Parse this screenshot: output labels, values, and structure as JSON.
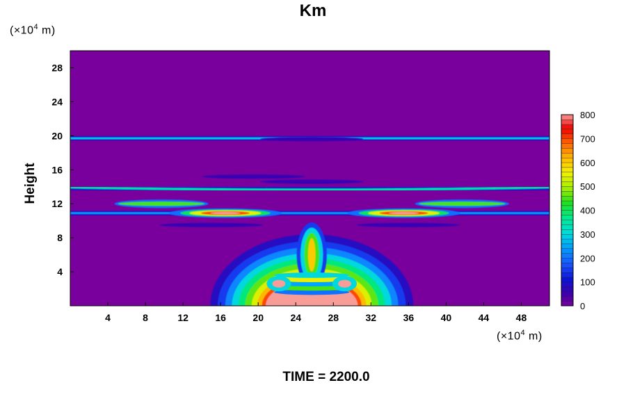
{
  "chart_data": {
    "type": "heatmap",
    "title": "Km",
    "ylabel": "Height",
    "xunit": "(×10",
    "yunit": "(×10",
    "unit_exp": "4",
    "unit_tail": " m)",
    "xlim": [
      0,
      51
    ],
    "ylim": [
      0,
      30
    ],
    "x_ticks": [
      4,
      8,
      12,
      16,
      20,
      24,
      28,
      32,
      36,
      40,
      44,
      48
    ],
    "y_ticks": [
      4,
      8,
      12,
      16,
      20,
      24,
      28
    ],
    "colorbar": {
      "min": 0,
      "max": 800,
      "tick_values": [
        0,
        100,
        200,
        300,
        400,
        500,
        600,
        700,
        800
      ],
      "tick_labels": [
        "0",
        "100",
        "200",
        "300",
        "400",
        "500",
        "600",
        "700",
        "800"
      ]
    },
    "footer_label": "TIME =",
    "footer_value": "2200.0",
    "features": [
      {
        "kind": "layer",
        "y": 19.7,
        "value": 300
      },
      {
        "kind": "layer",
        "y": 13.8,
        "value": 350
      },
      {
        "kind": "layer",
        "y": 10.9,
        "value": 250
      },
      {
        "kind": "blob",
        "x": 16.5,
        "y": 10.9,
        "value": 800
      },
      {
        "kind": "blob",
        "x": 35.5,
        "y": 10.9,
        "value": 800
      },
      {
        "kind": "blob",
        "x": 25.7,
        "y": 1.5,
        "value": 800
      }
    ]
  }
}
